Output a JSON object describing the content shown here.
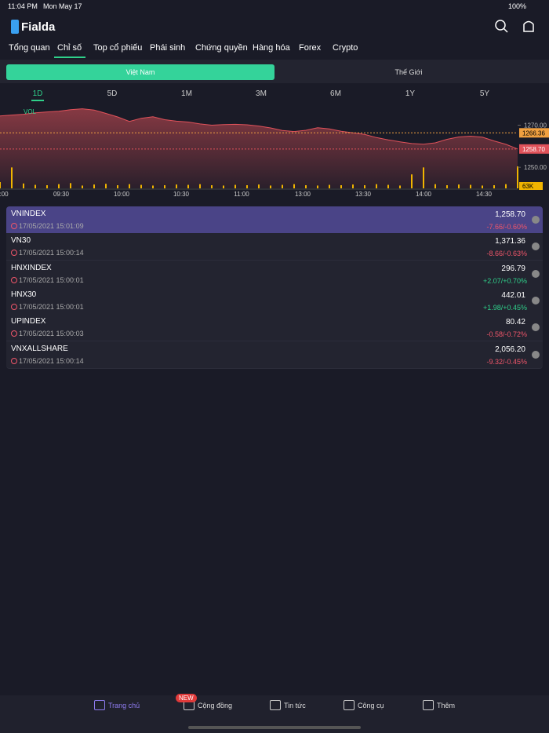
{
  "status_bar": {
    "time": "11:04 PM",
    "date": "Mon May 17",
    "battery": "100%"
  },
  "header": {
    "logo": "Fialda"
  },
  "tabs": [
    "Tổng quan",
    "Chỉ số",
    "Top cổ phiếu",
    "Phái sinh",
    "Chứng quyền",
    "Hàng hóa",
    "Forex",
    "Crypto"
  ],
  "active_tab": 1,
  "segments": [
    "Việt Nam",
    "Thế Giới"
  ],
  "active_segment": 0,
  "ranges": [
    "1D",
    "5D",
    "1M",
    "3M",
    "6M",
    "1Y",
    "5Y"
  ],
  "active_range": 0,
  "chart": {
    "type": "area",
    "volume_label": "VOL",
    "ylim": [
      1240,
      1281
    ],
    "yticks": [
      {
        "value": 1270,
        "label": "1270.00"
      },
      {
        "value": 1250,
        "label": "1250.00"
      }
    ],
    "reference": 1266.36,
    "last": {
      "value": 1258.7,
      "label": "1258.70"
    },
    "volume_last_label": "63K",
    "xtick_labels": [
      ":00",
      "09:30",
      "10:00",
      "10:30",
      "11:00",
      "13:00",
      "13:30",
      "14:00",
      "14:30"
    ],
    "line_color": "#e0525a",
    "volume_color": "#f0b400",
    "values": [
      1274.4,
      1274.8,
      1275.2,
      1275.9,
      1276.3,
      1276.6,
      1277.4,
      1277.8,
      1277.2,
      1275.6,
      1273.9,
      1271.8,
      1273.3,
      1274.0,
      1272.6,
      1271.9,
      1271.5,
      1270.6,
      1270.0,
      1270.3,
      1270.4,
      1270.2,
      1269.6,
      1268.7,
      1267.5,
      1267.0,
      1267.6,
      1268.8,
      1268.2,
      1267.1,
      1266.4,
      1265.6,
      1264.1,
      1263.0,
      1262.1,
      1261.3,
      1261.0,
      1261.6,
      1263.3,
      1264.4,
      1264.8,
      1264.3,
      1262.5,
      1260.9,
      1258.7
    ],
    "volume": [
      18,
      60,
      14,
      10,
      9,
      12,
      15,
      8,
      11,
      13,
      9,
      12,
      10,
      8,
      9,
      11,
      10,
      12,
      9,
      8,
      10,
      9,
      11,
      8,
      10,
      12,
      9,
      8,
      10,
      9,
      11,
      9,
      12,
      10,
      8,
      40,
      60,
      12,
      9,
      11,
      10,
      8,
      9,
      12,
      63
    ]
  },
  "indices": [
    {
      "name": "VNINDEX",
      "time": "17/05/2021 15:01:09",
      "price": "1,258.70",
      "change": "-7.66/-0.60%",
      "color": "#f0566a"
    },
    {
      "name": "VN30",
      "time": "17/05/2021 15:00:14",
      "price": "1,371.36",
      "change": "-8.66/-0.63%",
      "color": "#f0566a"
    },
    {
      "name": "HNXINDEX",
      "time": "17/05/2021 15:00:01",
      "price": "296.79",
      "change": "+2.07/+0.70%",
      "color": "#2fd08a"
    },
    {
      "name": "HNX30",
      "time": "17/05/2021 15:00:01",
      "price": "442.01",
      "change": "+1.98/+0.45%",
      "color": "#2fd08a"
    },
    {
      "name": "UPINDEX",
      "time": "17/05/2021 15:00:03",
      "price": "80.42",
      "change": "-0.58/-0.72%",
      "color": "#f0566a"
    },
    {
      "name": "VNXALLSHARE",
      "time": "17/05/2021 15:00:14",
      "price": "2,056.20",
      "change": "-9.32/-0.45%",
      "color": "#f0566a"
    }
  ],
  "bottom_nav": {
    "items": [
      "Trang chủ",
      "Cộng đồng",
      "Tin tức",
      "Công cụ",
      "Thêm"
    ],
    "badge": "NEW"
  }
}
